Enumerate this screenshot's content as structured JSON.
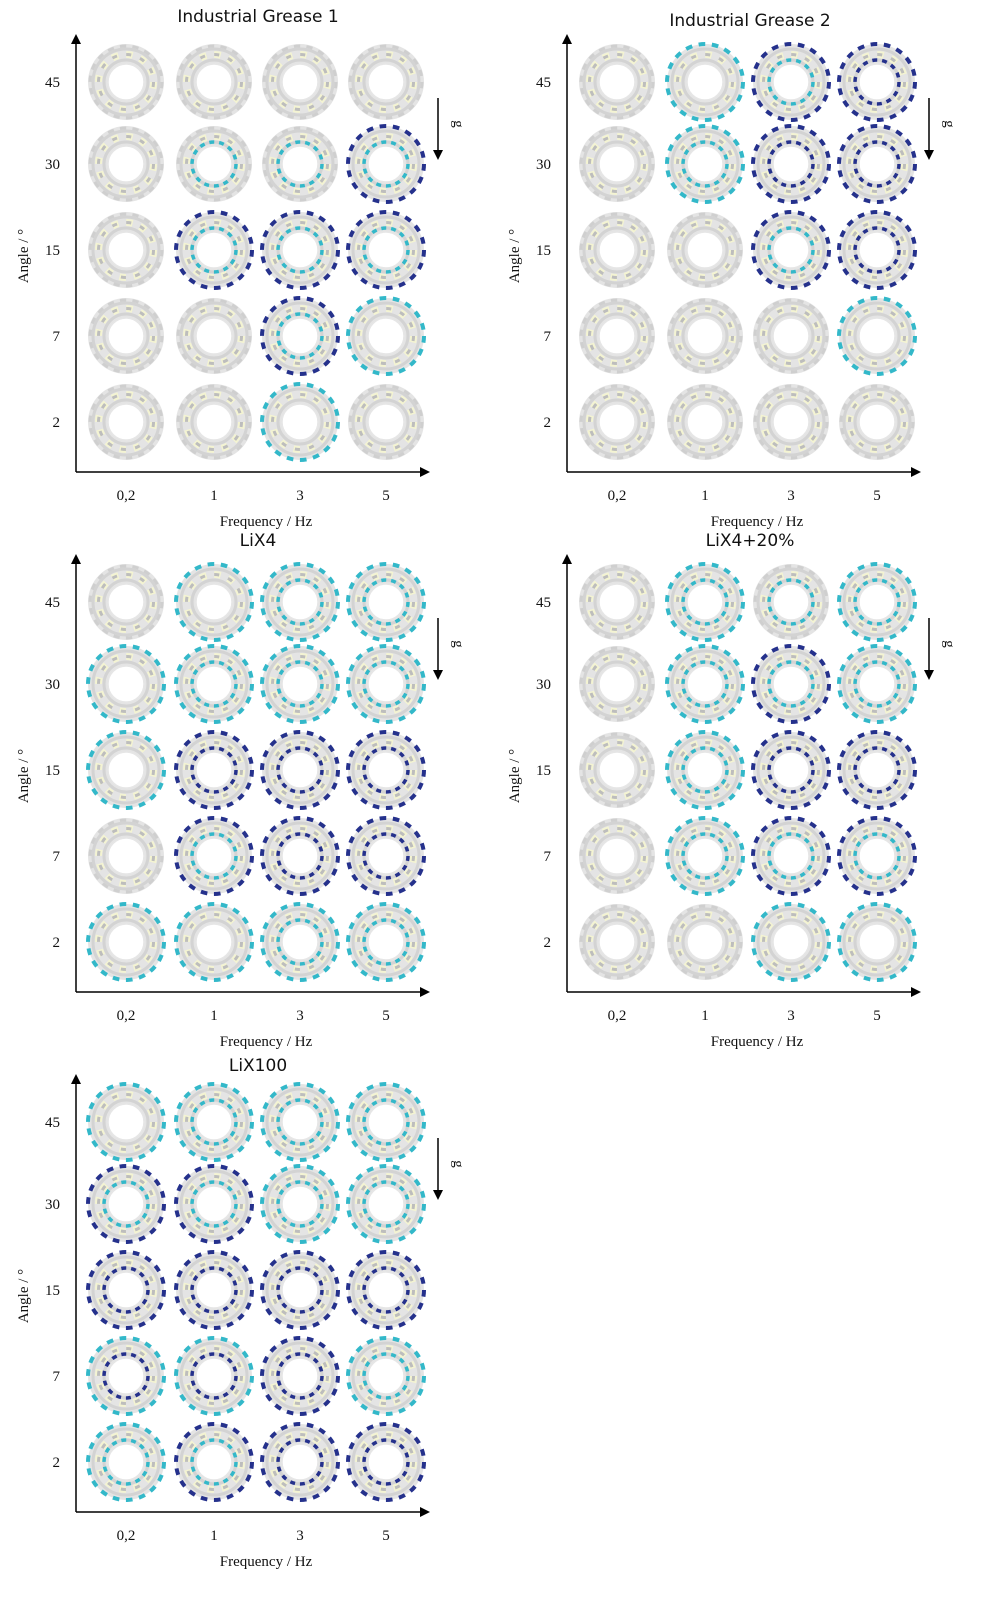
{
  "colors": {
    "none": "#c9c9c9",
    "partial": "#33b8c9",
    "full": "#25318c",
    "ring": "#e4e4e4",
    "ball": "#f4f4d2",
    "axis": "#000000"
  },
  "gravity_label": "g",
  "chart_data": [
    {
      "type": "heatmap",
      "title": "Industrial Grease 1",
      "xlabel": "Frequency / Hz",
      "ylabel": "Angle / °",
      "categories": [
        "0,2",
        "1",
        "3",
        "5"
      ],
      "y_categories": [
        "45",
        "30",
        "15",
        "7",
        "2"
      ],
      "outer_level": [
        [
          0,
          0,
          0,
          0
        ],
        [
          0,
          0,
          0,
          2
        ],
        [
          0,
          2,
          2,
          2
        ],
        [
          0,
          0,
          2,
          1
        ],
        [
          0,
          0,
          1,
          0
        ]
      ],
      "inner_level": [
        [
          0,
          0,
          0,
          0
        ],
        [
          0,
          1,
          1,
          1
        ],
        [
          0,
          1,
          1,
          1
        ],
        [
          0,
          0,
          1,
          0
        ],
        [
          0,
          0,
          0,
          0
        ]
      ]
    },
    {
      "type": "heatmap",
      "title": "Industrial Grease 2",
      "xlabel": "Frequency / Hz",
      "ylabel": "Angle / °",
      "categories": [
        "0,2",
        "1",
        "3",
        "5"
      ],
      "y_categories": [
        "45",
        "30",
        "15",
        "7",
        "2"
      ],
      "outer_level": [
        [
          0,
          1,
          2,
          2
        ],
        [
          0,
          1,
          2,
          2
        ],
        [
          0,
          0,
          2,
          2
        ],
        [
          0,
          0,
          0,
          1
        ],
        [
          0,
          0,
          0,
          0
        ]
      ],
      "inner_level": [
        [
          0,
          0,
          1,
          2
        ],
        [
          0,
          1,
          2,
          2
        ],
        [
          0,
          0,
          1,
          2
        ],
        [
          0,
          0,
          0,
          0
        ],
        [
          0,
          0,
          0,
          0
        ]
      ]
    },
    {
      "type": "heatmap",
      "title": "LiX4",
      "xlabel": "Frequency / Hz",
      "ylabel": "Angle / °",
      "categories": [
        "0,2",
        "1",
        "3",
        "5"
      ],
      "y_categories": [
        "45",
        "30",
        "15",
        "7",
        "2"
      ],
      "outer_level": [
        [
          0,
          1,
          1,
          1
        ],
        [
          1,
          1,
          1,
          1
        ],
        [
          1,
          2,
          2,
          2
        ],
        [
          0,
          2,
          2,
          2
        ],
        [
          1,
          1,
          1,
          1
        ]
      ],
      "inner_level": [
        [
          0,
          0,
          1,
          1
        ],
        [
          0,
          1,
          1,
          1
        ],
        [
          0,
          2,
          2,
          2
        ],
        [
          0,
          1,
          2,
          2
        ],
        [
          0,
          0,
          1,
          1
        ]
      ]
    },
    {
      "type": "heatmap",
      "title": "LiX4+20%",
      "xlabel": "Frequency / Hz",
      "ylabel": "Angle / °",
      "categories": [
        "0,2",
        "1",
        "3",
        "5"
      ],
      "y_categories": [
        "45",
        "30",
        "15",
        "7",
        "2"
      ],
      "outer_level": [
        [
          0,
          1,
          0,
          1
        ],
        [
          0,
          1,
          2,
          1
        ],
        [
          0,
          1,
          2,
          2
        ],
        [
          0,
          1,
          2,
          2
        ],
        [
          0,
          0,
          1,
          1
        ]
      ],
      "inner_level": [
        [
          0,
          1,
          1,
          1
        ],
        [
          0,
          1,
          1,
          1
        ],
        [
          0,
          1,
          2,
          2
        ],
        [
          0,
          1,
          1,
          1
        ],
        [
          0,
          0,
          0,
          0
        ]
      ]
    },
    {
      "type": "heatmap",
      "title": "LiX100",
      "xlabel": "Frequency / Hz",
      "ylabel": "Angle / °",
      "categories": [
        "0,2",
        "1",
        "3",
        "5"
      ],
      "y_categories": [
        "45",
        "30",
        "15",
        "7",
        "2"
      ],
      "outer_level": [
        [
          1,
          1,
          1,
          1
        ],
        [
          2,
          2,
          1,
          1
        ],
        [
          2,
          2,
          2,
          2
        ],
        [
          1,
          1,
          2,
          1
        ],
        [
          1,
          2,
          2,
          2
        ]
      ],
      "inner_level": [
        [
          0,
          1,
          1,
          1
        ],
        [
          1,
          1,
          1,
          1
        ],
        [
          2,
          2,
          2,
          2
        ],
        [
          2,
          2,
          2,
          1
        ],
        [
          1,
          1,
          2,
          2
        ]
      ]
    }
  ]
}
